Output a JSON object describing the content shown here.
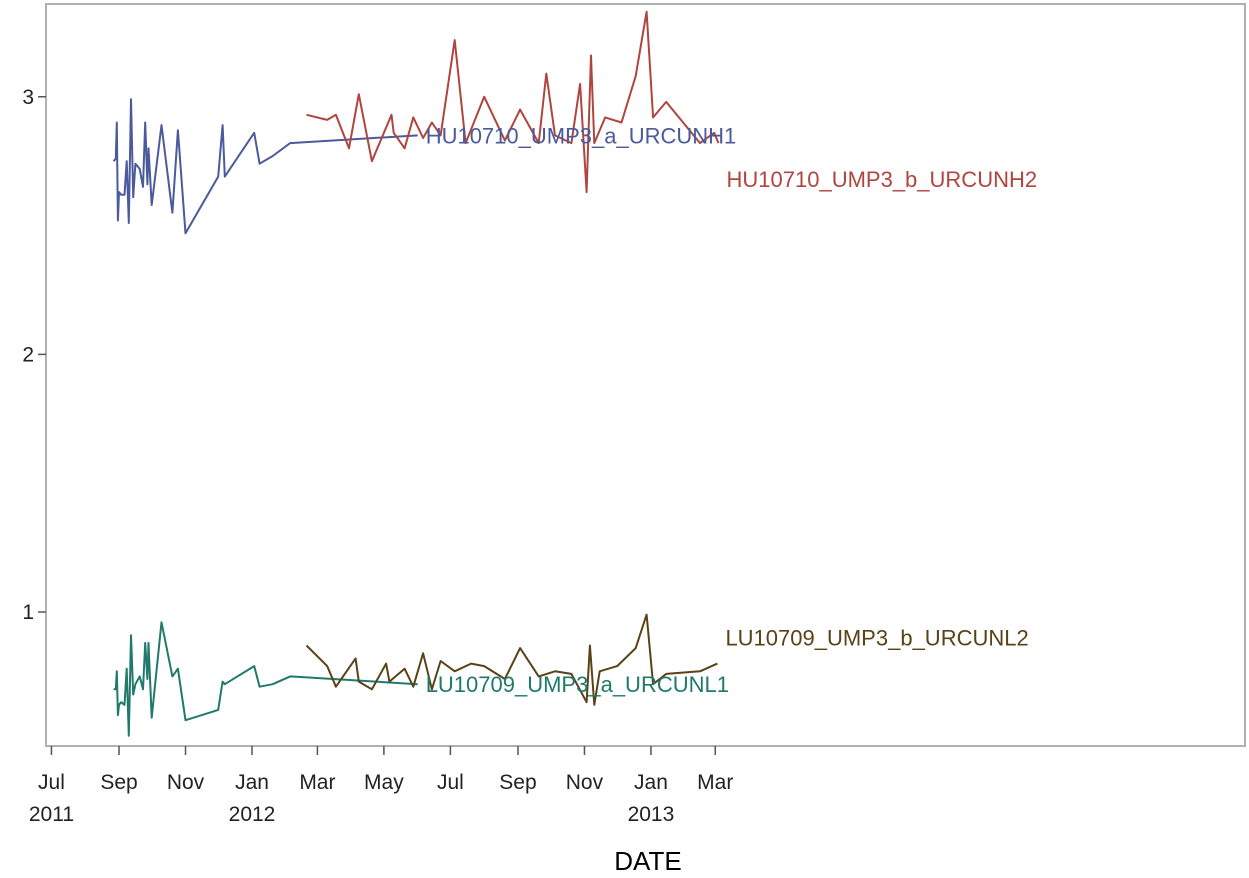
{
  "chart_data": {
    "type": "line",
    "title": "",
    "xlabel": "DATE",
    "ylabel": "",
    "x_type": "date",
    "xlim": [
      "2011-06-26",
      "2014-06-30"
    ],
    "ylim": [
      0.48,
      3.36
    ],
    "grid": false,
    "legend": "inline labels at line ends",
    "y_ticks": [
      {
        "value": 1,
        "label": "1"
      },
      {
        "value": 2,
        "label": "2"
      },
      {
        "value": 3,
        "label": "3"
      }
    ],
    "x_ticks": [
      {
        "date": "2011-07-01",
        "line1": "Jul",
        "line2": "2011"
      },
      {
        "date": "2011-09-01",
        "line1": "Sep",
        "line2": ""
      },
      {
        "date": "2011-11-01",
        "line1": "Nov",
        "line2": ""
      },
      {
        "date": "2012-01-01",
        "line1": "Jan",
        "line2": "2012"
      },
      {
        "date": "2012-03-01",
        "line1": "Mar",
        "line2": ""
      },
      {
        "date": "2012-05-01",
        "line1": "May",
        "line2": ""
      },
      {
        "date": "2012-07-01",
        "line1": "Jul",
        "line2": ""
      },
      {
        "date": "2012-09-01",
        "line1": "Sep",
        "line2": ""
      },
      {
        "date": "2012-11-01",
        "line1": "Nov",
        "line2": ""
      },
      {
        "date": "2013-01-01",
        "line1": "Jan",
        "line2": "2013"
      },
      {
        "date": "2013-03-01",
        "line1": "Mar",
        "line2": ""
      }
    ],
    "series": [
      {
        "name": "HU10710_UMP3_a_URCUNH1",
        "color": "#4a5a9c",
        "points": [
          [
            "2011-08-27",
            2.75
          ],
          [
            "2011-08-29",
            2.76
          ],
          [
            "2011-08-30",
            2.9
          ],
          [
            "2011-08-31",
            2.52
          ],
          [
            "2011-09-01",
            2.63
          ],
          [
            "2011-09-03",
            2.62
          ],
          [
            "2011-09-06",
            2.62
          ],
          [
            "2011-09-08",
            2.75
          ],
          [
            "2011-09-10",
            2.51
          ],
          [
            "2011-09-12",
            2.99
          ],
          [
            "2011-09-14",
            2.61
          ],
          [
            "2011-09-16",
            2.74
          ],
          [
            "2011-09-20",
            2.72
          ],
          [
            "2011-09-23",
            2.65
          ],
          [
            "2011-09-25",
            2.9
          ],
          [
            "2011-09-27",
            2.66
          ],
          [
            "2011-09-28",
            2.8
          ],
          [
            "2011-10-01",
            2.58
          ],
          [
            "2011-10-10",
            2.89
          ],
          [
            "2011-10-20",
            2.55
          ],
          [
            "2011-10-25",
            2.87
          ],
          [
            "2011-11-01",
            2.47
          ],
          [
            "2011-12-01",
            2.69
          ],
          [
            "2011-12-05",
            2.89
          ],
          [
            "2011-12-07",
            2.69
          ],
          [
            "2012-01-03",
            2.86
          ],
          [
            "2012-01-08",
            2.74
          ],
          [
            "2012-01-20",
            2.77
          ],
          [
            "2012-02-05",
            2.82
          ],
          [
            "2012-06-01",
            2.85
          ]
        ]
      },
      {
        "name": "HU10710_UMP3_b_URCUNH2",
        "color": "#b0443e",
        "points": [
          [
            "2012-02-20",
            2.93
          ],
          [
            "2012-03-10",
            2.91
          ],
          [
            "2012-03-18",
            2.93
          ],
          [
            "2012-03-30",
            2.8
          ],
          [
            "2012-04-08",
            3.01
          ],
          [
            "2012-04-20",
            2.75
          ],
          [
            "2012-05-08",
            2.93
          ],
          [
            "2012-05-10",
            2.86
          ],
          [
            "2012-05-20",
            2.8
          ],
          [
            "2012-05-28",
            2.92
          ],
          [
            "2012-06-06",
            2.84
          ],
          [
            "2012-06-14",
            2.9
          ],
          [
            "2012-06-22",
            2.85
          ],
          [
            "2012-07-05",
            3.22
          ],
          [
            "2012-07-15",
            2.82
          ],
          [
            "2012-08-01",
            3.0
          ],
          [
            "2012-08-20",
            2.83
          ],
          [
            "2012-09-03",
            2.95
          ],
          [
            "2012-09-20",
            2.82
          ],
          [
            "2012-09-27",
            3.09
          ],
          [
            "2012-10-05",
            2.85
          ],
          [
            "2012-10-20",
            2.82
          ],
          [
            "2012-10-28",
            3.05
          ],
          [
            "2012-11-03",
            2.63
          ],
          [
            "2012-11-07",
            3.16
          ],
          [
            "2012-11-10",
            2.82
          ],
          [
            "2012-11-20",
            2.92
          ],
          [
            "2012-12-05",
            2.9
          ],
          [
            "2012-12-18",
            3.08
          ],
          [
            "2012-12-28",
            3.33
          ],
          [
            "2013-01-03",
            2.92
          ],
          [
            "2013-01-15",
            2.98
          ],
          [
            "2013-02-15",
            2.82
          ],
          [
            "2013-02-28",
            2.86
          ],
          [
            "2013-03-04",
            2.82
          ]
        ]
      },
      {
        "name": "LU10709_UMP3_a_URCUNL1",
        "color": "#1f7a6b",
        "points": [
          [
            "2011-08-27",
            0.7
          ],
          [
            "2011-08-29",
            0.7
          ],
          [
            "2011-08-30",
            0.77
          ],
          [
            "2011-08-31",
            0.6
          ],
          [
            "2011-09-01",
            0.64
          ],
          [
            "2011-09-03",
            0.65
          ],
          [
            "2011-09-06",
            0.64
          ],
          [
            "2011-09-08",
            0.78
          ],
          [
            "2011-09-10",
            0.52
          ],
          [
            "2011-09-12",
            0.91
          ],
          [
            "2011-09-14",
            0.68
          ],
          [
            "2011-09-16",
            0.72
          ],
          [
            "2011-09-20",
            0.75
          ],
          [
            "2011-09-23",
            0.7
          ],
          [
            "2011-09-25",
            0.88
          ],
          [
            "2011-09-27",
            0.74
          ],
          [
            "2011-09-28",
            0.88
          ],
          [
            "2011-10-01",
            0.59
          ],
          [
            "2011-10-10",
            0.96
          ],
          [
            "2011-10-20",
            0.75
          ],
          [
            "2011-10-25",
            0.78
          ],
          [
            "2011-11-01",
            0.58
          ],
          [
            "2011-12-01",
            0.62
          ],
          [
            "2011-12-05",
            0.73
          ],
          [
            "2011-12-07",
            0.72
          ],
          [
            "2012-01-03",
            0.79
          ],
          [
            "2012-01-08",
            0.71
          ],
          [
            "2012-01-20",
            0.72
          ],
          [
            "2012-02-05",
            0.75
          ],
          [
            "2012-06-01",
            0.72
          ]
        ]
      },
      {
        "name": "LU10709_UMP3_b_URCUNL2",
        "color": "#5a4218",
        "points": [
          [
            "2012-02-20",
            0.87
          ],
          [
            "2012-03-10",
            0.79
          ],
          [
            "2012-03-18",
            0.71
          ],
          [
            "2012-04-05",
            0.82
          ],
          [
            "2012-04-08",
            0.73
          ],
          [
            "2012-04-20",
            0.7
          ],
          [
            "2012-05-03",
            0.8
          ],
          [
            "2012-05-06",
            0.73
          ],
          [
            "2012-05-20",
            0.78
          ],
          [
            "2012-05-28",
            0.71
          ],
          [
            "2012-06-06",
            0.84
          ],
          [
            "2012-06-14",
            0.7
          ],
          [
            "2012-06-22",
            0.81
          ],
          [
            "2012-07-05",
            0.77
          ],
          [
            "2012-07-20",
            0.8
          ],
          [
            "2012-08-01",
            0.79
          ],
          [
            "2012-08-20",
            0.74
          ],
          [
            "2012-09-03",
            0.86
          ],
          [
            "2012-09-20",
            0.75
          ],
          [
            "2012-10-05",
            0.77
          ],
          [
            "2012-10-20",
            0.76
          ],
          [
            "2012-11-03",
            0.65
          ],
          [
            "2012-11-06",
            0.87
          ],
          [
            "2012-11-10",
            0.64
          ],
          [
            "2012-11-15",
            0.77
          ],
          [
            "2012-12-01",
            0.79
          ],
          [
            "2012-12-18",
            0.86
          ],
          [
            "2012-12-28",
            0.99
          ],
          [
            "2013-01-03",
            0.72
          ],
          [
            "2013-01-15",
            0.76
          ],
          [
            "2013-02-15",
            0.77
          ],
          [
            "2013-03-03",
            0.8
          ]
        ]
      }
    ]
  }
}
